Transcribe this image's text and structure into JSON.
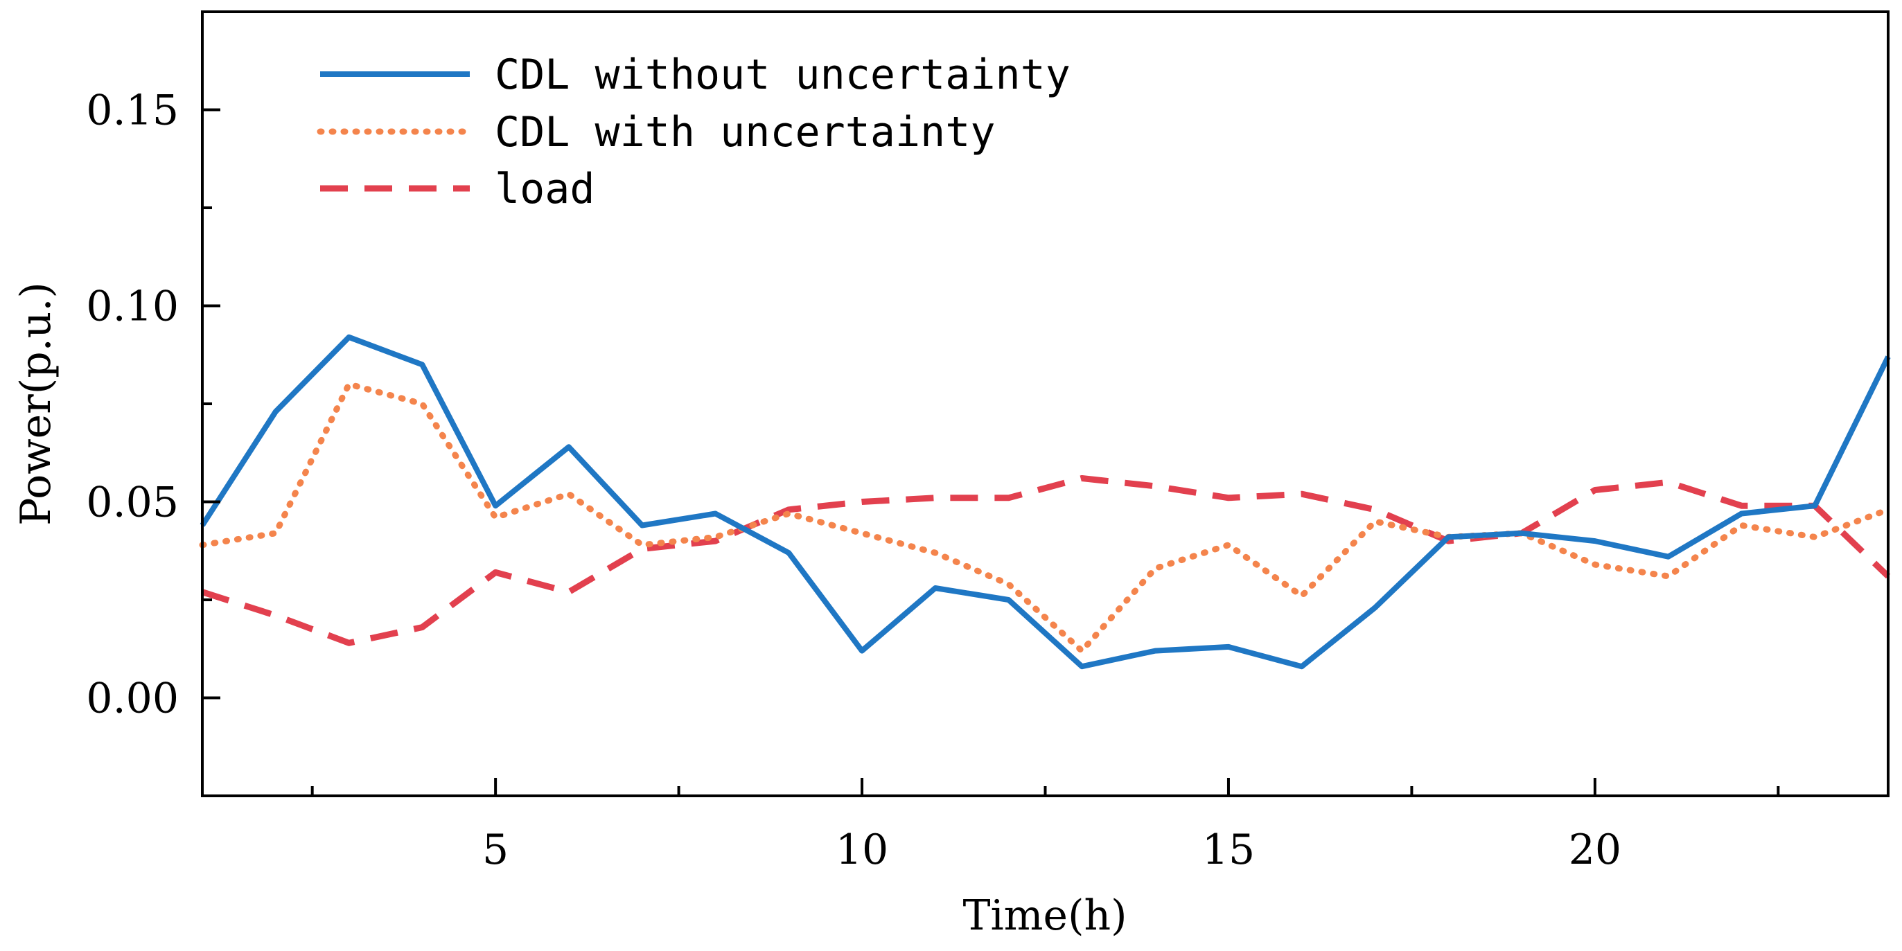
{
  "chart_data": {
    "type": "line",
    "title": "",
    "xlabel": "Time(h)",
    "ylabel": "Power(p.u.)",
    "xlim": [
      1,
      24
    ],
    "ylim": [
      -0.025,
      0.175
    ],
    "x_ticks": [
      5,
      10,
      15,
      20
    ],
    "x_tick_labels": [
      "5",
      "10",
      "15",
      "20"
    ],
    "x_minor_ticks": [
      2.5,
      7.5,
      12.5,
      17.5,
      22.5
    ],
    "y_ticks": [
      0.0,
      0.05,
      0.1,
      0.15
    ],
    "y_tick_labels": [
      "0.00",
      "0.05",
      "0.10",
      "0.15"
    ],
    "y_minor_ticks": [
      0.025,
      0.075,
      0.125
    ],
    "grid": false,
    "legend_position": "top-left",
    "x": [
      1,
      2,
      3,
      4,
      5,
      6,
      7,
      8,
      9,
      10,
      11,
      12,
      13,
      14,
      15,
      16,
      17,
      18,
      19,
      20,
      21,
      22,
      23,
      24
    ],
    "series": [
      {
        "name": "CDL without uncertainty",
        "color": "#1f77c4",
        "style": "solid",
        "values": [
          0.044,
          0.073,
          0.092,
          0.085,
          0.049,
          0.064,
          0.044,
          0.047,
          0.037,
          0.012,
          0.028,
          0.025,
          0.008,
          0.012,
          0.013,
          0.008,
          0.023,
          0.041,
          0.042,
          0.04,
          0.036,
          0.047,
          0.049,
          0.087
        ]
      },
      {
        "name": "CDL with uncertainty",
        "color": "#f4844c",
        "style": "dotted",
        "values": [
          0.039,
          0.042,
          0.08,
          0.075,
          0.046,
          0.052,
          0.039,
          0.041,
          0.047,
          0.042,
          0.037,
          0.029,
          0.012,
          0.033,
          0.039,
          0.026,
          0.045,
          0.041,
          0.042,
          0.034,
          0.031,
          0.044,
          0.041,
          0.048
        ]
      },
      {
        "name": "load",
        "color": "#e2404e",
        "style": "dashed",
        "values": [
          0.027,
          0.021,
          0.014,
          0.018,
          0.032,
          0.027,
          0.038,
          0.04,
          0.048,
          0.05,
          0.051,
          0.051,
          0.056,
          0.054,
          0.051,
          0.052,
          0.048,
          0.04,
          0.042,
          0.053,
          0.055,
          0.049,
          0.049,
          0.031
        ]
      }
    ]
  }
}
